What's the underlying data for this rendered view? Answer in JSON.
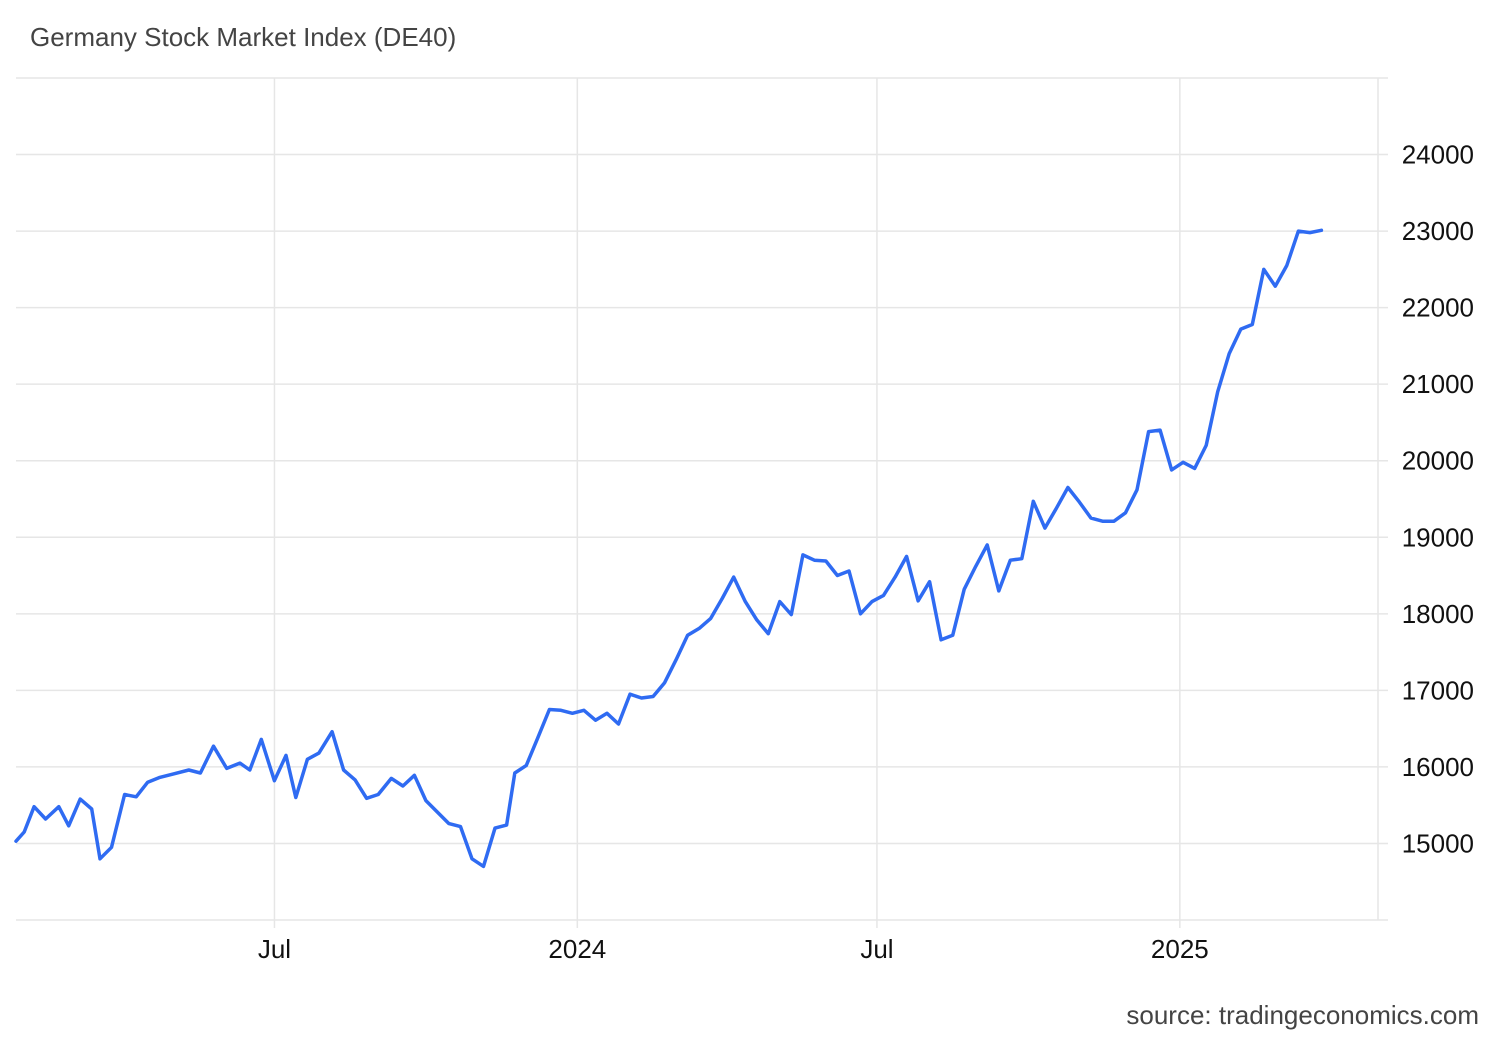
{
  "title": "Germany Stock Market Index (DE40)",
  "source": "source: tradingeconomics.com",
  "colors": {
    "line": "#2f6bf2",
    "grid": "#e6e6e6",
    "text": "#111111",
    "title": "#444444"
  },
  "chart_data": {
    "type": "line",
    "title": "Germany Stock Market Index (DE40)",
    "xlabel": "",
    "ylabel": "",
    "grid": true,
    "legend": "none",
    "ylim": [
      14000,
      25000
    ],
    "y_ticks": [
      15000,
      16000,
      17000,
      18000,
      19000,
      20000,
      21000,
      22000,
      23000,
      24000
    ],
    "x_ticks": [
      {
        "label": "Jul",
        "date": "2023-07-01"
      },
      {
        "label": "2024",
        "date": "2024-01-01"
      },
      {
        "label": "Jul",
        "date": "2024-07-01"
      },
      {
        "label": "2025",
        "date": "2025-01-01"
      }
    ],
    "x_range": [
      "2023-01-25",
      "2025-04-01"
    ],
    "series": [
      {
        "values": [
          [
            "2023-01-25",
            15030
          ],
          [
            "2023-01-30",
            15150
          ],
          [
            "2023-02-05",
            15480
          ],
          [
            "2023-02-12",
            15320
          ],
          [
            "2023-02-20",
            15480
          ],
          [
            "2023-02-26",
            15230
          ],
          [
            "2023-03-05",
            15580
          ],
          [
            "2023-03-12",
            15450
          ],
          [
            "2023-03-17",
            14800
          ],
          [
            "2023-03-24",
            14950
          ],
          [
            "2023-04-01",
            15640
          ],
          [
            "2023-04-08",
            15610
          ],
          [
            "2023-04-15",
            15800
          ],
          [
            "2023-04-22",
            15860
          ],
          [
            "2023-05-01",
            15910
          ],
          [
            "2023-05-10",
            15960
          ],
          [
            "2023-05-17",
            15920
          ],
          [
            "2023-05-25",
            16270
          ],
          [
            "2023-06-02",
            15980
          ],
          [
            "2023-06-10",
            16050
          ],
          [
            "2023-06-16",
            15960
          ],
          [
            "2023-06-23",
            16360
          ],
          [
            "2023-07-01",
            15820
          ],
          [
            "2023-07-08",
            16150
          ],
          [
            "2023-07-14",
            15600
          ],
          [
            "2023-07-21",
            16100
          ],
          [
            "2023-07-28",
            16180
          ],
          [
            "2023-08-05",
            16460
          ],
          [
            "2023-08-12",
            15960
          ],
          [
            "2023-08-19",
            15830
          ],
          [
            "2023-08-26",
            15590
          ],
          [
            "2023-09-02",
            15640
          ],
          [
            "2023-09-10",
            15850
          ],
          [
            "2023-09-17",
            15750
          ],
          [
            "2023-09-24",
            15890
          ],
          [
            "2023-10-01",
            15560
          ],
          [
            "2023-10-08",
            15410
          ],
          [
            "2023-10-15",
            15260
          ],
          [
            "2023-10-22",
            15220
          ],
          [
            "2023-10-29",
            14800
          ],
          [
            "2023-11-05",
            14700
          ],
          [
            "2023-11-12",
            15200
          ],
          [
            "2023-11-19",
            15240
          ],
          [
            "2023-11-24",
            15920
          ],
          [
            "2023-12-01",
            16020
          ],
          [
            "2023-12-08",
            16380
          ],
          [
            "2023-12-15",
            16750
          ],
          [
            "2023-12-22",
            16740
          ],
          [
            "2023-12-29",
            16700
          ],
          [
            "2024-01-05",
            16740
          ],
          [
            "2024-01-12",
            16610
          ],
          [
            "2024-01-19",
            16700
          ],
          [
            "2024-01-26",
            16560
          ],
          [
            "2024-02-02",
            16950
          ],
          [
            "2024-02-09",
            16900
          ],
          [
            "2024-02-16",
            16920
          ],
          [
            "2024-02-23",
            17100
          ],
          [
            "2024-03-01",
            17400
          ],
          [
            "2024-03-08",
            17720
          ],
          [
            "2024-03-15",
            17810
          ],
          [
            "2024-03-22",
            17940
          ],
          [
            "2024-03-29",
            18200
          ],
          [
            "2024-04-05",
            18480
          ],
          [
            "2024-04-12",
            18160
          ],
          [
            "2024-04-19",
            17920
          ],
          [
            "2024-04-26",
            17740
          ],
          [
            "2024-05-03",
            18160
          ],
          [
            "2024-05-10",
            17990
          ],
          [
            "2024-05-17",
            18770
          ],
          [
            "2024-05-24",
            18700
          ],
          [
            "2024-05-31",
            18690
          ],
          [
            "2024-06-07",
            18500
          ],
          [
            "2024-06-14",
            18560
          ],
          [
            "2024-06-21",
            18000
          ],
          [
            "2024-06-28",
            18160
          ],
          [
            "2024-07-05",
            18240
          ],
          [
            "2024-07-12",
            18480
          ],
          [
            "2024-07-19",
            18750
          ],
          [
            "2024-07-26",
            18170
          ],
          [
            "2024-08-02",
            18420
          ],
          [
            "2024-08-09",
            17660
          ],
          [
            "2024-08-16",
            17720
          ],
          [
            "2024-08-23",
            18320
          ],
          [
            "2024-08-30",
            18620
          ],
          [
            "2024-09-06",
            18900
          ],
          [
            "2024-09-13",
            18300
          ],
          [
            "2024-09-20",
            18700
          ],
          [
            "2024-09-27",
            18720
          ],
          [
            "2024-10-04",
            19470
          ],
          [
            "2024-10-11",
            19120
          ],
          [
            "2024-10-18",
            19380
          ],
          [
            "2024-10-25",
            19650
          ],
          [
            "2024-11-01",
            19460
          ],
          [
            "2024-11-08",
            19250
          ],
          [
            "2024-11-15",
            19210
          ],
          [
            "2024-11-22",
            19210
          ],
          [
            "2024-11-29",
            19320
          ],
          [
            "2024-12-06",
            19620
          ],
          [
            "2024-12-13",
            20380
          ],
          [
            "2024-12-20",
            20400
          ],
          [
            "2024-12-27",
            19880
          ],
          [
            "2025-01-03",
            19980
          ],
          [
            "2025-01-10",
            19900
          ],
          [
            "2025-01-17",
            20200
          ],
          [
            "2025-01-24",
            20900
          ],
          [
            "2025-01-31",
            21400
          ],
          [
            "2025-02-07",
            21720
          ],
          [
            "2025-02-14",
            21780
          ],
          [
            "2025-02-21",
            22500
          ],
          [
            "2025-02-28",
            22280
          ],
          [
            "2025-03-07",
            22550
          ],
          [
            "2025-03-14",
            23000
          ],
          [
            "2025-03-21",
            22980
          ],
          [
            "2025-03-28",
            23010
          ]
        ]
      }
    ]
  }
}
